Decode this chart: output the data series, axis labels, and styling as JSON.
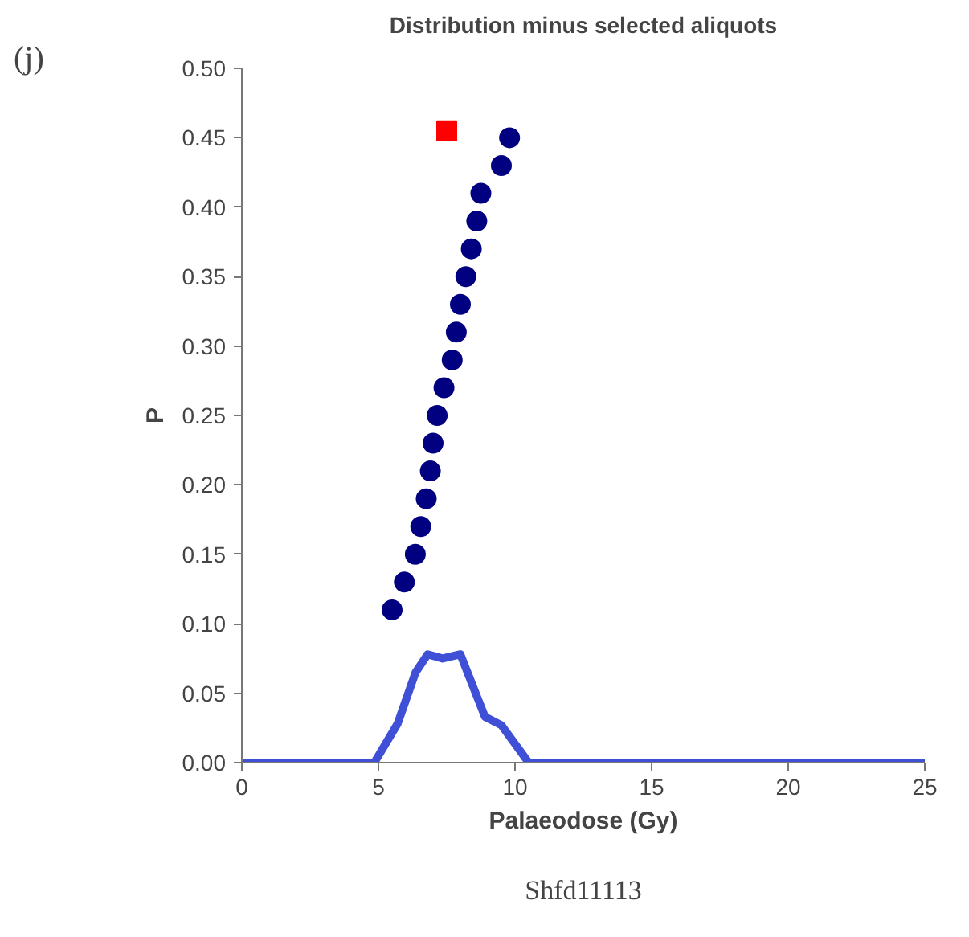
{
  "chart_data": {
    "type": "line",
    "title": "Distribution minus selected aliquots",
    "xlabel": "Palaeodose (Gy)",
    "ylabel": "P",
    "xlim": [
      0,
      25
    ],
    "xticks": [
      0,
      5,
      10,
      15,
      20,
      25
    ],
    "ylim": [
      0,
      0.5
    ],
    "yticks": [
      {
        "value": 0,
        "label": "0.00"
      },
      {
        "value": 0.05,
        "label": "0.05"
      },
      {
        "value": 0.1,
        "label": "0.10"
      },
      {
        "value": 0.15,
        "label": "0.15"
      },
      {
        "value": 0.2,
        "label": "0.20"
      },
      {
        "value": 0.25,
        "label": "0.25"
      },
      {
        "value": 0.3,
        "label": "0.30"
      },
      {
        "value": 0.35,
        "label": "0.35"
      },
      {
        "value": 0.4,
        "label": "0.40"
      },
      {
        "value": 0.45,
        "label": "0.45"
      },
      {
        "value": 0.5,
        "label": "0.50"
      }
    ],
    "grid": false,
    "series": [
      {
        "color": "#3f4fd6",
        "x": [
          0,
          4.85,
          5.7,
          6.36,
          6.8,
          7.35,
          8.0,
          8.9,
          9.5,
          10.5,
          25
        ],
        "values": [
          0,
          0,
          0.028,
          0.065,
          0.078,
          0.075,
          0.078,
          0.033,
          0.027,
          0,
          0
        ],
        "marker": "none"
      },
      {
        "type": "scatter",
        "color": "#000080",
        "marker": "circle",
        "x": [
          5.5,
          5.95,
          6.35,
          6.55,
          6.75,
          6.9,
          7.0,
          7.15,
          7.4,
          7.7,
          7.85,
          8.0,
          8.2,
          8.4,
          8.6,
          8.75,
          9.5,
          9.8
        ],
        "values": [
          0.11,
          0.13,
          0.15,
          0.17,
          0.19,
          0.21,
          0.23,
          0.25,
          0.27,
          0.29,
          0.31,
          0.33,
          0.35,
          0.37,
          0.39,
          0.41,
          0.43,
          0.45
        ]
      },
      {
        "type": "scatter",
        "color": "#ff0000",
        "marker": "square",
        "x": [
          7.5
        ],
        "values": [
          0.455
        ]
      }
    ],
    "annotations": [
      "(j)",
      "Shfd11113"
    ]
  }
}
